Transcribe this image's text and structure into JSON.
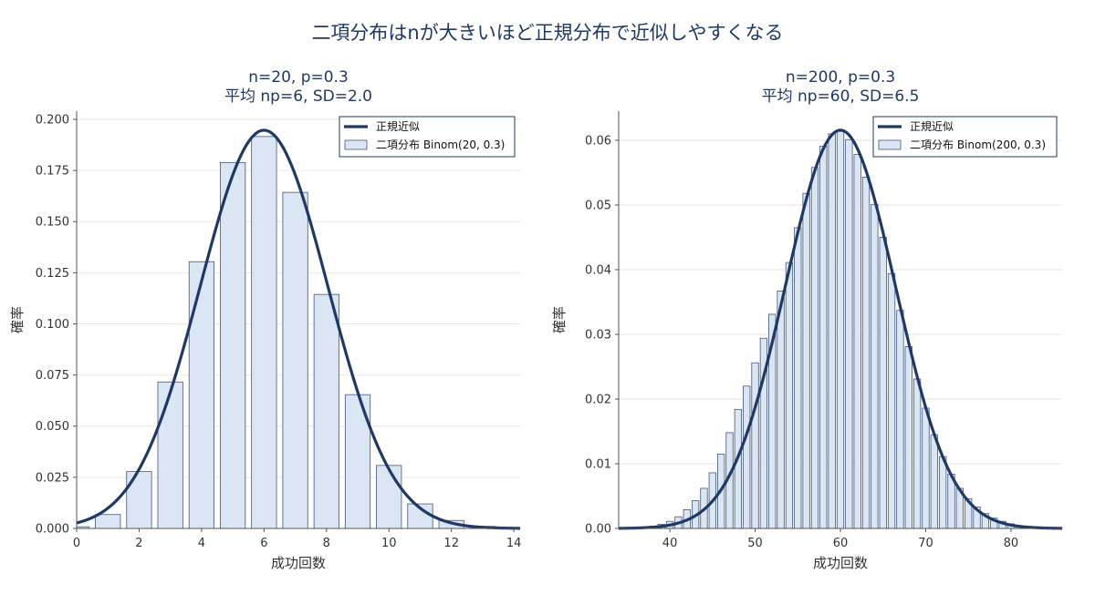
{
  "suptitle": "二項分布はnが大きいほど正規分布で近似しやすくなる",
  "colors": {
    "bar_fill": "#dae6f4",
    "bar_edge": "#44557a",
    "curve": "#1f3864",
    "grid": "#e6e6e6",
    "axis": "#555555",
    "legend_border": "#1f3864"
  },
  "chart_data": [
    {
      "type": "bar",
      "title": "n=20, p=0.3\n平均 np=6, SD=2.0",
      "xlabel": "成功回数",
      "ylabel": "確率",
      "xlim": [
        0,
        14.2
      ],
      "ylim": [
        0,
        0.204
      ],
      "xticks": [
        0,
        2,
        4,
        6,
        8,
        10,
        12,
        14
      ],
      "yticks": [
        0,
        0.025,
        0.05,
        0.075,
        0.1,
        0.125,
        0.15,
        0.175,
        0.2
      ],
      "ytick_decimals": 3,
      "grid": true,
      "legend_position": "top-right",
      "legend": [
        "正規近似",
        "二項分布 Binom(20, 0.3)"
      ],
      "bar_width": 0.8,
      "x": [
        0,
        1,
        2,
        3,
        4,
        5,
        6,
        7,
        8,
        9,
        10,
        11,
        12,
        13,
        14
      ],
      "values": [
        0.0008,
        0.0068,
        0.0278,
        0.0716,
        0.1304,
        0.1789,
        0.1916,
        0.1643,
        0.1144,
        0.0654,
        0.0308,
        0.012,
        0.0039,
        0.001,
        0.0002
      ],
      "normal": {
        "mean": 6,
        "sd": 2.0493
      }
    },
    {
      "type": "bar",
      "title": "n=200, p=0.3\n平均 np=60, SD=6.5",
      "xlabel": "成功回数",
      "ylabel": "確率",
      "xlim": [
        34,
        86
      ],
      "ylim": [
        0,
        0.0645
      ],
      "xticks": [
        40,
        50,
        60,
        70,
        80
      ],
      "yticks": [
        0,
        0.01,
        0.02,
        0.03,
        0.04,
        0.05,
        0.06
      ],
      "ytick_decimals": 2,
      "grid": true,
      "legend_position": "top-right",
      "legend": [
        "正規近似",
        "二項分布 Binom(200, 0.3)"
      ],
      "bar_width": 0.8,
      "x": [
        34,
        35,
        36,
        37,
        38,
        39,
        40,
        41,
        42,
        43,
        44,
        45,
        46,
        47,
        48,
        49,
        50,
        51,
        52,
        53,
        54,
        55,
        56,
        57,
        58,
        59,
        60,
        61,
        62,
        63,
        64,
        65,
        66,
        67,
        68,
        69,
        70,
        71,
        72,
        73,
        74,
        75,
        76,
        77,
        78,
        79,
        80,
        81,
        82,
        83,
        84,
        85,
        86
      ],
      "values": [
        2e-05,
        4e-05,
        9e-05,
        0.00018,
        0.00035,
        0.00063,
        0.0011,
        0.0018,
        0.0029,
        0.0043,
        0.0062,
        0.0086,
        0.0115,
        0.0148,
        0.0184,
        0.022,
        0.0256,
        0.0294,
        0.0331,
        0.0367,
        0.0411,
        0.0465,
        0.0518,
        0.0558,
        0.0591,
        0.061,
        0.0614,
        0.0601,
        0.0578,
        0.0543,
        0.0501,
        0.045,
        0.0394,
        0.0337,
        0.0281,
        0.0231,
        0.0186,
        0.0145,
        0.0111,
        0.0084,
        0.0062,
        0.0046,
        0.0033,
        0.0023,
        0.0016,
        0.0011,
        0.0007,
        0.00045,
        0.00029,
        0.00018,
        0.00011,
        7e-05,
        4e-05
      ],
      "normal": {
        "mean": 60,
        "sd": 6.4807
      }
    }
  ]
}
